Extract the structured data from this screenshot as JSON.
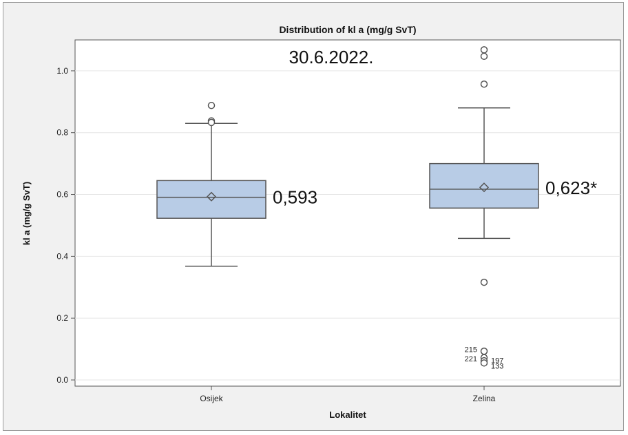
{
  "chart_data": {
    "type": "box",
    "title": "Distribution of kl a (mg/g SvT)",
    "subtitle": "30.6.2022.",
    "xlabel": "Lokalitet",
    "ylabel": "kl a (mg/g SvT)",
    "ylim": [
      -0.02,
      1.1
    ],
    "yticks": [
      0.0,
      0.2,
      0.4,
      0.6,
      0.8,
      1.0
    ],
    "ytick_labels": [
      "0.0",
      "0.2",
      "0.4",
      "0.6",
      "0.8",
      "1.0"
    ],
    "grid": true,
    "colors": {
      "box_fill": "#b8cce6",
      "box_edge": "#555555",
      "background": "#ffffff",
      "grid": "#e6e6e6"
    },
    "categories": [
      "Osijek",
      "Zelina"
    ],
    "boxes": [
      {
        "category": "Osijek",
        "whisker_low": 0.368,
        "q1": 0.523,
        "median": 0.591,
        "q3": 0.645,
        "whisker_high": 0.83,
        "mean": 0.593,
        "mean_label": "0,593",
        "outliers": [
          {
            "value": 0.888,
            "label": ""
          },
          {
            "value": 0.838,
            "label": ""
          },
          {
            "value": 0.833,
            "label": ""
          }
        ]
      },
      {
        "category": "Zelina",
        "whisker_low": 0.458,
        "q1": 0.556,
        "median": 0.617,
        "q3": 0.7,
        "whisker_high": 0.88,
        "mean": 0.623,
        "mean_label": "0,623*",
        "outliers": [
          {
            "value": 1.068,
            "label": ""
          },
          {
            "value": 1.047,
            "label": ""
          },
          {
            "value": 0.957,
            "label": ""
          },
          {
            "value": 0.316,
            "label": ""
          },
          {
            "value": 0.093,
            "label": "215"
          },
          {
            "value": 0.072,
            "label": "197"
          },
          {
            "value": 0.062,
            "label": "221"
          },
          {
            "value": 0.055,
            "label": "133"
          }
        ]
      }
    ]
  }
}
